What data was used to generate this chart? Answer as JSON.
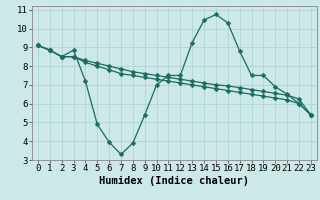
{
  "xlabel": "Humidex (Indice chaleur)",
  "xlim": [
    -0.5,
    23.5
  ],
  "ylim": [
    3,
    11.2
  ],
  "xticks": [
    0,
    1,
    2,
    3,
    4,
    5,
    6,
    7,
    8,
    9,
    10,
    11,
    12,
    13,
    14,
    15,
    16,
    17,
    18,
    19,
    20,
    21,
    22,
    23
  ],
  "yticks": [
    3,
    4,
    5,
    6,
    7,
    8,
    9,
    10,
    11
  ],
  "bg_color": "#cce8e8",
  "line_color": "#1a6b60",
  "line1_x": [
    0,
    1,
    2,
    3,
    4,
    5,
    6,
    7,
    8,
    9,
    10,
    11,
    12,
    13,
    14,
    15,
    16,
    17,
    18,
    19,
    20,
    21,
    22,
    23
  ],
  "line1_y": [
    9.1,
    8.85,
    8.5,
    8.85,
    7.2,
    4.9,
    3.95,
    3.3,
    3.9,
    5.4,
    7.0,
    7.5,
    7.5,
    9.25,
    10.45,
    10.75,
    10.3,
    8.8,
    7.5,
    7.5,
    6.9,
    6.5,
    6.0,
    5.4
  ],
  "line2_x": [
    0,
    1,
    2,
    3,
    4,
    5,
    6,
    7,
    8,
    9,
    10,
    11,
    12,
    13,
    14,
    15,
    16,
    17,
    18,
    19,
    20,
    21,
    22,
    23
  ],
  "line2_y": [
    9.1,
    8.85,
    8.5,
    8.5,
    8.3,
    8.15,
    8.0,
    7.85,
    7.7,
    7.6,
    7.5,
    7.4,
    7.3,
    7.2,
    7.1,
    7.0,
    6.95,
    6.85,
    6.75,
    6.65,
    6.55,
    6.45,
    6.25,
    5.4
  ],
  "line3_x": [
    0,
    1,
    2,
    3,
    4,
    5,
    6,
    7,
    8,
    9,
    10,
    11,
    12,
    13,
    14,
    15,
    16,
    17,
    18,
    19,
    20,
    21,
    22,
    23
  ],
  "line3_y": [
    9.1,
    8.85,
    8.5,
    8.5,
    8.2,
    8.0,
    7.8,
    7.6,
    7.5,
    7.4,
    7.3,
    7.2,
    7.1,
    7.0,
    6.9,
    6.8,
    6.7,
    6.6,
    6.5,
    6.4,
    6.3,
    6.2,
    6.0,
    5.4
  ],
  "grid_color": "#afd4d4",
  "tick_fontsize": 6.5,
  "label_fontsize": 7.5,
  "marker_size": 2.5,
  "line_width": 0.9
}
